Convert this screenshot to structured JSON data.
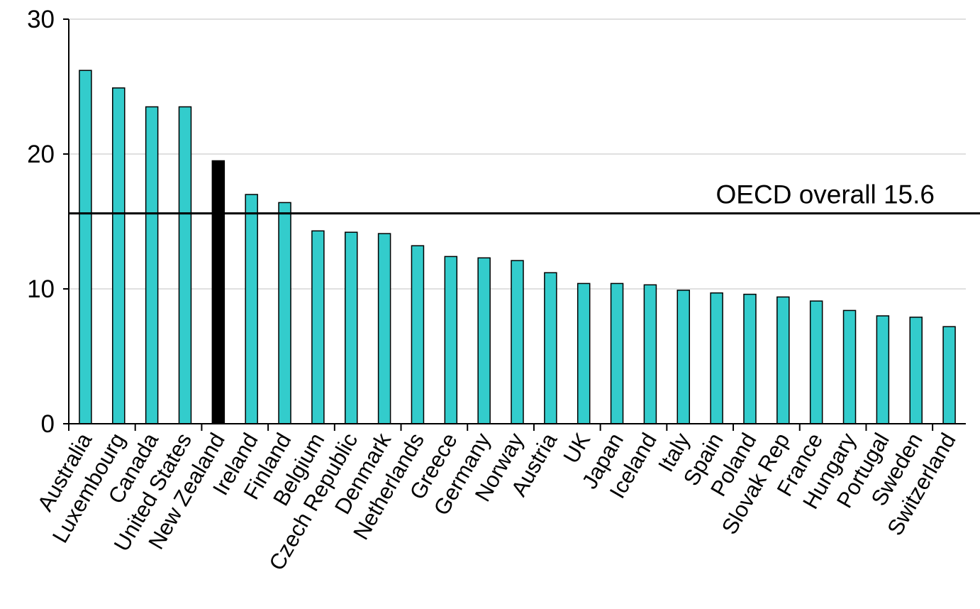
{
  "chart_data": {
    "type": "bar",
    "title": "",
    "xlabel": "",
    "ylabel": "",
    "ylim": [
      0,
      30
    ],
    "yticks": [
      0,
      10,
      20,
      30
    ],
    "grid": true,
    "categories": [
      "Australia",
      "Luxembourg",
      "Canada",
      "United States",
      "New Zealand",
      "Ireland",
      "Finland",
      "Belgium",
      "Czech Republic",
      "Denmark",
      "Netherlands",
      "Greece",
      "Germany",
      "Norway",
      "Austria",
      "UK",
      "Japan",
      "Iceland",
      "Italy",
      "Spain",
      "Poland",
      "Slovak Rep",
      "France",
      "Hungary",
      "Portugal",
      "Sweden",
      "Switzerland"
    ],
    "values": [
      26.2,
      24.9,
      23.5,
      23.5,
      19.5,
      17.0,
      16.4,
      14.3,
      14.2,
      14.1,
      13.2,
      12.4,
      12.3,
      12.1,
      11.2,
      10.4,
      10.4,
      10.3,
      9.9,
      9.7,
      9.6,
      9.4,
      9.1,
      8.4,
      8.0,
      7.9,
      7.2
    ],
    "highlight": "New Zealand",
    "colors": {
      "bar": "#33CCCC",
      "highlight": "#000000",
      "outline": "#000000",
      "grid": "#C0C0C0"
    },
    "reference_line": {
      "value": 15.6,
      "label": "OECD overall 15.6"
    }
  }
}
